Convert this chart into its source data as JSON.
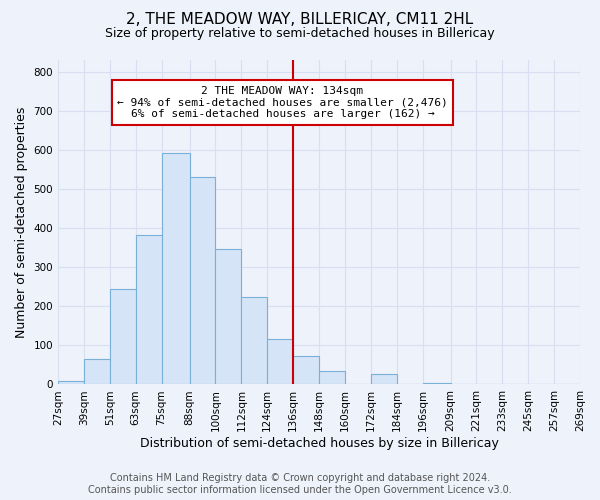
{
  "title": "2, THE MEADOW WAY, BILLERICAY, CM11 2HL",
  "subtitle": "Size of property relative to semi-detached houses in Billericay",
  "xlabel": "Distribution of semi-detached houses by size in Billericay",
  "ylabel": "Number of semi-detached properties",
  "bin_edges": [
    27,
    39,
    51,
    63,
    75,
    88,
    100,
    112,
    124,
    136,
    148,
    160,
    172,
    184,
    196,
    209,
    221,
    233,
    245,
    257,
    269
  ],
  "bin_heights": [
    10,
    65,
    245,
    383,
    593,
    530,
    347,
    223,
    117,
    72,
    35,
    0,
    26,
    0,
    5,
    0,
    0,
    0,
    0,
    0
  ],
  "bar_color": "#d6e4f7",
  "bar_edge_color": "#7ab0d8",
  "property_line_x": 136,
  "property_line_color": "#cc0000",
  "annotation_title": "2 THE MEADOW WAY: 134sqm",
  "annotation_line1": "← 94% of semi-detached houses are smaller (2,476)",
  "annotation_line2": "6% of semi-detached houses are larger (162) →",
  "annotation_box_color": "#ffffff",
  "annotation_box_edge_color": "#cc0000",
  "ylim": [
    0,
    830
  ],
  "xlim": [
    27,
    269
  ],
  "tick_labels": [
    "27sqm",
    "39sqm",
    "51sqm",
    "63sqm",
    "75sqm",
    "88sqm",
    "100sqm",
    "112sqm",
    "124sqm",
    "136sqm",
    "148sqm",
    "160sqm",
    "172sqm",
    "184sqm",
    "196sqm",
    "209sqm",
    "221sqm",
    "233sqm",
    "245sqm",
    "257sqm",
    "269sqm"
  ],
  "tick_positions": [
    27,
    39,
    51,
    63,
    75,
    88,
    100,
    112,
    124,
    136,
    148,
    160,
    172,
    184,
    196,
    209,
    221,
    233,
    245,
    257,
    269
  ],
  "footer_line1": "Contains HM Land Registry data © Crown copyright and database right 2024.",
  "footer_line2": "Contains public sector information licensed under the Open Government Licence v3.0.",
  "background_color": "#eef2fb",
  "grid_color": "#d8dff0",
  "title_fontsize": 11,
  "subtitle_fontsize": 9,
  "axis_label_fontsize": 9,
  "tick_fontsize": 7.5,
  "footer_fontsize": 7,
  "yticks": [
    0,
    100,
    200,
    300,
    400,
    500,
    600,
    700,
    800
  ]
}
